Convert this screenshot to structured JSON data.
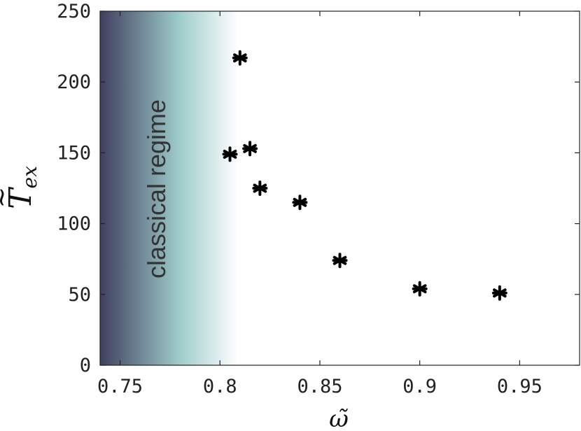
{
  "chart_data": {
    "type": "scatter",
    "xlabel": "ω̃",
    "ylabel_main": "T",
    "ylabel_tilde": "~",
    "ylabel_sub": "ex",
    "xlim": [
      0.74,
      0.98
    ],
    "ylim": [
      0,
      250
    ],
    "x_ticks": [
      0.75,
      0.8,
      0.85,
      0.9,
      0.95
    ],
    "x_tick_labels": [
      "0.75",
      "0.8",
      "0.85",
      "0.9",
      "0.95"
    ],
    "y_ticks": [
      0,
      50,
      100,
      150,
      200,
      250
    ],
    "y_tick_labels": [
      "0",
      "50",
      "100",
      "150",
      "200",
      "250"
    ],
    "grid": false,
    "region": {
      "label": "classical regime",
      "x_start": 0.74,
      "x_end": 0.809,
      "colors": [
        "#3f3f5f",
        "#9fcdcb",
        "#ffffff"
      ]
    },
    "marker": "asterisk",
    "marker_color": "#000000",
    "points": [
      {
        "x": 0.805,
        "y": 149
      },
      {
        "x": 0.81,
        "y": 217
      },
      {
        "x": 0.815,
        "y": 153
      },
      {
        "x": 0.82,
        "y": 125
      },
      {
        "x": 0.84,
        "y": 115
      },
      {
        "x": 0.86,
        "y": 74
      },
      {
        "x": 0.9,
        "y": 54
      },
      {
        "x": 0.94,
        "y": 51
      }
    ]
  }
}
